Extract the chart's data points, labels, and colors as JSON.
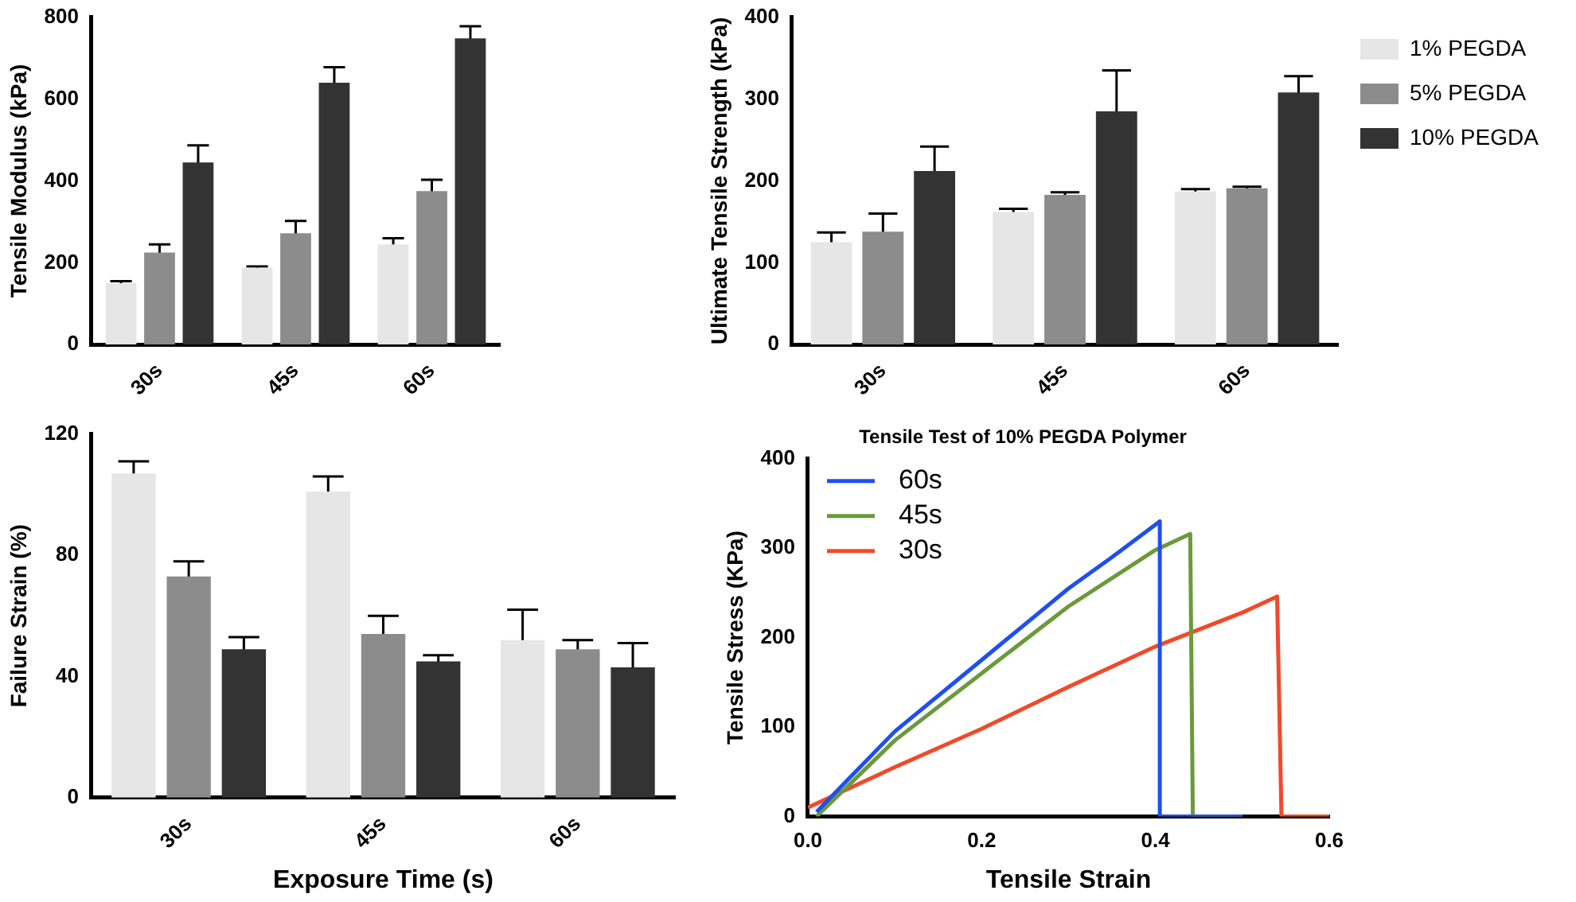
{
  "chart_data": [
    {
      "type": "bar",
      "ylabel": "Tensile Modulus (kPa)",
      "categories": [
        "30s",
        "45s",
        "60s"
      ],
      "ylim": [
        0,
        800
      ],
      "yticks": [
        0,
        200,
        400,
        600,
        800
      ],
      "grid": false,
      "legend": false,
      "series": [
        {
          "color": "#e6e6e6",
          "values": [
            150,
            188,
            245
          ],
          "errors": [
            5,
            3,
            15
          ]
        },
        {
          "color": "#8c8c8c",
          "values": [
            225,
            272,
            375
          ],
          "errors": [
            20,
            30,
            28
          ]
        },
        {
          "color": "#333333",
          "values": [
            445,
            640,
            748
          ],
          "errors": [
            42,
            38,
            30
          ]
        }
      ]
    },
    {
      "type": "bar",
      "ylabel": "Ultimate Tensile Strength (kPa)",
      "categories": [
        "30s",
        "45s",
        "60s"
      ],
      "ylim": [
        0,
        400
      ],
      "yticks": [
        0,
        100,
        200,
        300,
        400
      ],
      "grid": false,
      "legend": "right",
      "series": [
        {
          "name": "1% PEGDA",
          "color": "#e6e6e6",
          "values": [
            125,
            162,
            187
          ],
          "errors": [
            12,
            4,
            3
          ]
        },
        {
          "name": "5% PEGDA",
          "color": "#8c8c8c",
          "values": [
            138,
            183,
            191
          ],
          "errors": [
            22,
            3,
            2
          ]
        },
        {
          "name": "10% PEGDA",
          "color": "#333333",
          "values": [
            212,
            285,
            308
          ],
          "errors": [
            30,
            50,
            20
          ]
        }
      ]
    },
    {
      "type": "bar",
      "ylabel": "Failure Strain (%)",
      "xlabel": "Exposure Time (s)",
      "categories": [
        "30s",
        "45s",
        "60s"
      ],
      "ylim": [
        0,
        120
      ],
      "yticks": [
        0,
        40,
        80,
        120
      ],
      "grid": false,
      "legend": false,
      "series": [
        {
          "color": "#e6e6e6",
          "values": [
            107,
            101,
            52
          ],
          "errors": [
            4,
            5,
            10
          ]
        },
        {
          "color": "#8c8c8c",
          "values": [
            73,
            54,
            49
          ],
          "errors": [
            5,
            6,
            3
          ]
        },
        {
          "color": "#333333",
          "values": [
            49,
            45,
            43
          ],
          "errors": [
            4,
            2,
            8
          ]
        }
      ]
    },
    {
      "type": "line",
      "title": "Tensile Test of 10% PEGDA Polymer",
      "xlabel": "Tensile Strain",
      "ylabel": "Tensile Stress (KPa)",
      "xlim": [
        0,
        0.6
      ],
      "xticks": [
        {
          "value": 0,
          "label": "0.0"
        },
        0.2,
        0.4,
        0.6
      ],
      "ylim": [
        0,
        400
      ],
      "yticks": [
        0,
        100,
        200,
        300,
        400
      ],
      "grid": false,
      "legend": "top left",
      "marker": "none",
      "line_style": "solid",
      "series": [
        {
          "name": "60s",
          "color": "#1f4ff0",
          "x": [
            0.01,
            0.05,
            0.1,
            0.2,
            0.3,
            0.35,
            0.405,
            0.405,
            0.5
          ],
          "values": [
            5,
            45,
            95,
            175,
            255,
            290,
            330,
            0,
            0
          ]
        },
        {
          "name": "45s",
          "color": "#6a9a3a",
          "x": [
            0.01,
            0.1,
            0.2,
            0.3,
            0.4,
            0.44,
            0.443,
            0.5
          ],
          "values": [
            0,
            85,
            160,
            235,
            298,
            316,
            0,
            0
          ]
        },
        {
          "name": "30s",
          "color": "#f04a2a",
          "x": [
            0,
            0.1,
            0.2,
            0.3,
            0.4,
            0.5,
            0.54,
            0.545,
            0.6
          ],
          "values": [
            10,
            55,
            98,
            145,
            190,
            228,
            246,
            0,
            0
          ]
        }
      ]
    }
  ]
}
